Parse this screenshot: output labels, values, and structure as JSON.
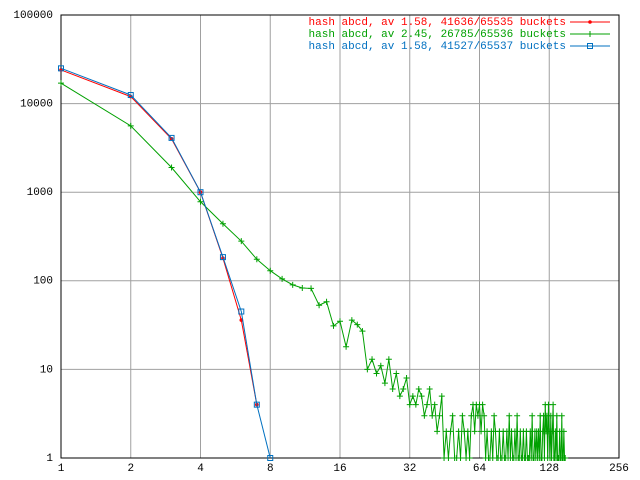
{
  "chart_data": {
    "type": "line",
    "xscale": "log2",
    "yscale": "log10",
    "grid": true,
    "legend": "top-right",
    "xlim": [
      1,
      256
    ],
    "ylim": [
      1,
      100000
    ],
    "xticks": [
      1,
      2,
      4,
      8,
      16,
      32,
      64,
      128,
      256
    ],
    "yticks": [
      1,
      10,
      100,
      1000,
      10000,
      100000
    ],
    "series": [
      {
        "name": "hash abcd, av 1.58, 41636/65535 buckets",
        "color": "#ff0000",
        "marker": "dot",
        "x": [
          1,
          2,
          3,
          4,
          5,
          6,
          7
        ],
        "values": [
          24000,
          12000,
          4000,
          1000,
          180,
          36,
          4
        ]
      },
      {
        "name": "hash abcd, av 2.45, 26785/65536 buckets",
        "color": "#00a000",
        "marker": "plus",
        "x": [
          1,
          2,
          3,
          4,
          5,
          6,
          7,
          8,
          9,
          10,
          11,
          12,
          13,
          14,
          15,
          16,
          17,
          18,
          19,
          20,
          21,
          22,
          23,
          24,
          25,
          26,
          27,
          28,
          29,
          30,
          31,
          32,
          33,
          34,
          35,
          36,
          37,
          38,
          39,
          40,
          41,
          42,
          43,
          44,
          45,
          46,
          47,
          48,
          49,
          50,
          51,
          52,
          53,
          54,
          55,
          56,
          57,
          58,
          59,
          60,
          61,
          62,
          63,
          64,
          65,
          66,
          67,
          68,
          69,
          70,
          71,
          72,
          73,
          74,
          75,
          76,
          77,
          78,
          79,
          80,
          81,
          82,
          83,
          84,
          85,
          86,
          87,
          88,
          89,
          90,
          91,
          92,
          93,
          94,
          95,
          96,
          97,
          98,
          99,
          100,
          101,
          102,
          103,
          104,
          105,
          106,
          107,
          108,
          109,
          110,
          111,
          112,
          113,
          114,
          115,
          116,
          117,
          118,
          119,
          120,
          121,
          122,
          123,
          124,
          125,
          126,
          127,
          128,
          129,
          130,
          131,
          132,
          133,
          134,
          135,
          136,
          137,
          138,
          139,
          140,
          141,
          142,
          143,
          144,
          145,
          146,
          147,
          148,
          149,
          150
        ],
        "values": [
          17000,
          5600,
          1900,
          780,
          440,
          280,
          175,
          130,
          105,
          90,
          83,
          82,
          53,
          58,
          31,
          35,
          18,
          36,
          32,
          27,
          10,
          13,
          9,
          11,
          7,
          13,
          6,
          9,
          5,
          6,
          8,
          4,
          5,
          4,
          6,
          5,
          3,
          4,
          6,
          3,
          4,
          2,
          3,
          5,
          1,
          2,
          1,
          2,
          3,
          1,
          1,
          2,
          1,
          3,
          2,
          1,
          2,
          1,
          3,
          4,
          2,
          4,
          3,
          4,
          2,
          4,
          3,
          1,
          2,
          1,
          1,
          2,
          1,
          3,
          2,
          1,
          1,
          2,
          1,
          1,
          2,
          1,
          1,
          2,
          1,
          3,
          1,
          2,
          1,
          1,
          2,
          1,
          3,
          1,
          1,
          2,
          1,
          1,
          2,
          1,
          1,
          2,
          1,
          1,
          1,
          2,
          1,
          3,
          1,
          1,
          2,
          1,
          2,
          1,
          2,
          1,
          3,
          1,
          1,
          2,
          3,
          1,
          4,
          2,
          3,
          1,
          4,
          2,
          1,
          3,
          1,
          2,
          4,
          1,
          1,
          2,
          1,
          3,
          1,
          1,
          1,
          2,
          1,
          1,
          3,
          1,
          1,
          2,
          1,
          1
        ]
      },
      {
        "name": "hash abcd, av 1.58, 41527/65537 buckets",
        "color": "#0070c0",
        "marker": "square",
        "x": [
          1,
          2,
          3,
          4,
          5,
          6,
          7,
          8
        ],
        "values": [
          25000,
          12500,
          4100,
          1000,
          185,
          45,
          4,
          1
        ]
      }
    ]
  }
}
